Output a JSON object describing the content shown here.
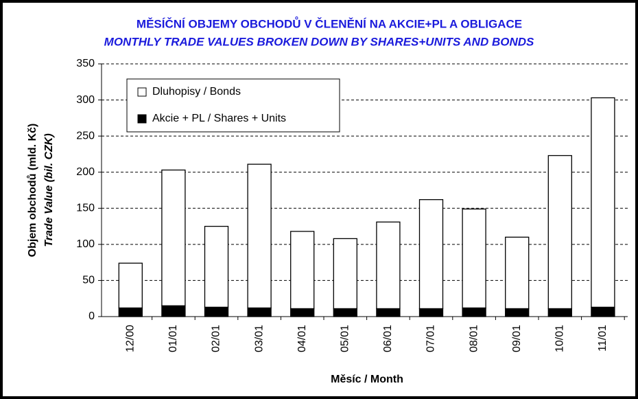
{
  "chart_data": {
    "type": "stacked_bar",
    "title": "MĚSÍČNÍ OBJEMY OBCHODŮ V ČLENĚNÍ NA AKCIE+PL A OBLIGACE",
    "subtitle": "MONTHLY TRADE VALUES BROKEN DOWN BY SHARES+UNITS AND BONDS",
    "y_label": [
      "Objem obchodů (mld. Kč)",
      "Trade Value (bil. CZK)"
    ],
    "x_label": "Měsíc / Month",
    "categories": [
      "12/00",
      "01/01",
      "02/01",
      "03/01",
      "04/01",
      "05/01",
      "06/01",
      "07/01",
      "08/01",
      "09/01",
      "10/01",
      "11/01"
    ],
    "series": [
      {
        "name": "Akcie + PL / Shares + Units",
        "color": "#000000",
        "values": [
          12,
          15,
          13,
          12,
          11,
          11,
          11,
          11,
          12,
          11,
          11,
          13
        ]
      },
      {
        "name": "Dluhopisy / Bonds",
        "color": "#ffffff",
        "values": [
          62,
          188,
          112,
          199,
          107,
          97,
          120,
          151,
          137,
          99,
          212,
          290
        ]
      }
    ],
    "ylim": [
      0,
      350
    ],
    "yticks": [
      0,
      50,
      100,
      150,
      200,
      250,
      300,
      350
    ],
    "grid": true
  }
}
